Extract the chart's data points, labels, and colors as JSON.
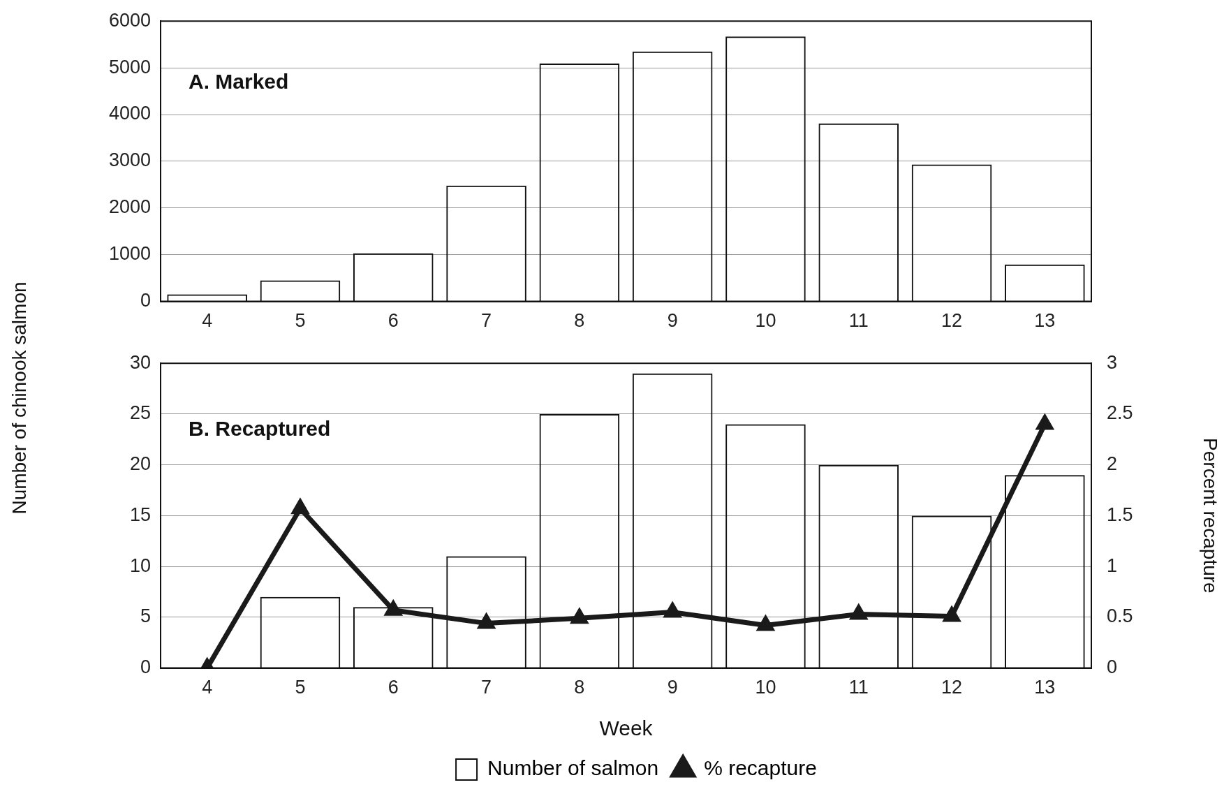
{
  "chart_data": [
    {
      "type": "bar",
      "title": "A. Marked",
      "ylabel": "Number of chinook salmon",
      "categories": [
        "4",
        "5",
        "6",
        "7",
        "8",
        "9",
        "10",
        "11",
        "12",
        "13"
      ],
      "series": [
        {
          "color": "#111111",
          "values": [
            150,
            450,
            1030,
            2480,
            5090,
            5350,
            5670,
            3810,
            2930,
            790
          ]
        }
      ],
      "ylim": [
        0,
        6000
      ],
      "yticks": [
        0,
        1000,
        2000,
        3000,
        4000,
        5000,
        6000
      ],
      "grid": "y",
      "legend": false
    },
    {
      "type": "bar",
      "title": "B. Recaptured",
      "xlabel": "Week",
      "y2label": "Percent recapture",
      "categories": [
        "4",
        "5",
        "6",
        "7",
        "8",
        "9",
        "10",
        "11",
        "12",
        "13"
      ],
      "series": [
        {
          "name": "Number of salmon",
          "color": "#111111",
          "values": [
            0,
            7,
            6,
            11,
            25,
            29,
            24,
            20,
            15,
            19
          ]
        },
        {
          "name": "% recapture",
          "type": "line",
          "axis": "y2",
          "color": "#1a1a1a",
          "marker": "triangle",
          "values": [
            0,
            1.57,
            0.57,
            0.44,
            0.49,
            0.55,
            0.42,
            0.53,
            0.51,
            2.4
          ]
        }
      ],
      "ylim": [
        0,
        30
      ],
      "yticks": [
        0,
        5,
        10,
        15,
        20,
        25,
        30
      ],
      "y2lim": [
        0,
        3
      ],
      "y2ticks": [
        0,
        0.5,
        1,
        1.5,
        2,
        2.5,
        3
      ],
      "grid": "y",
      "legend": "bottom"
    }
  ]
}
